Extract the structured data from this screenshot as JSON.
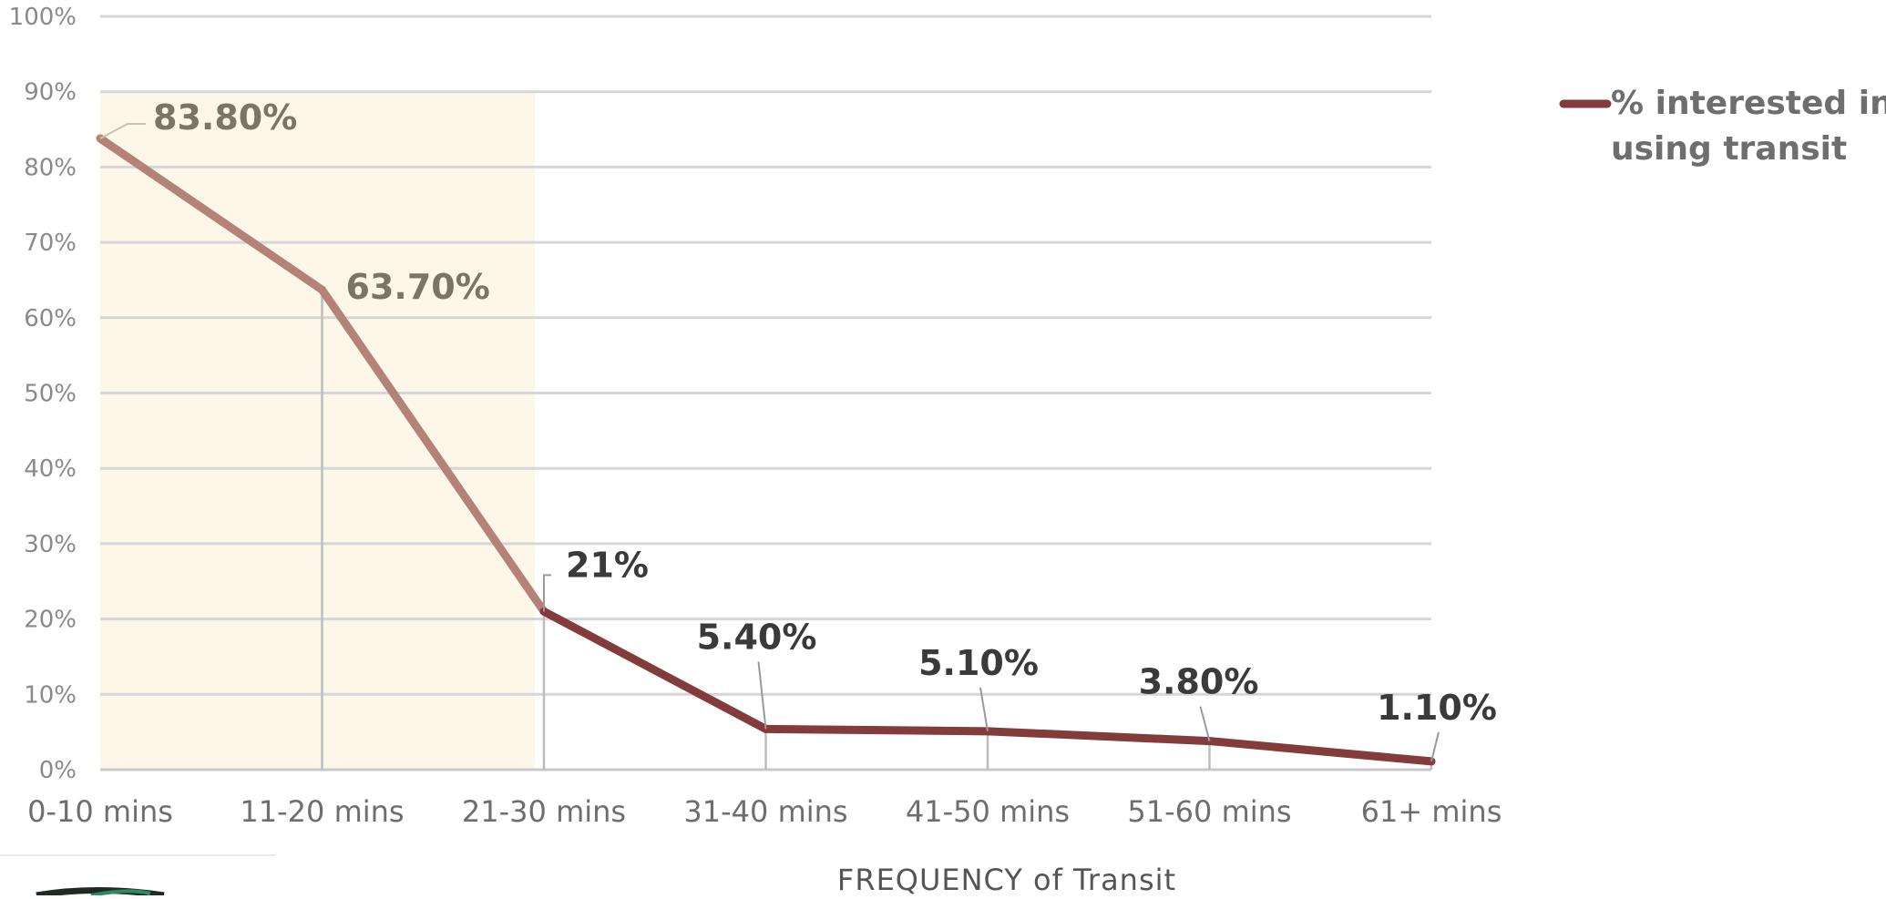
{
  "chart_data": {
    "type": "line",
    "title": "",
    "xlabel": "FREQUENCY of Transit",
    "ylabel": "",
    "categories": [
      "0-10 mins",
      "11-20 mins",
      "21-30 mins",
      "31-40 mins",
      "41-50 mins",
      "51-60 mins",
      "61+ mins"
    ],
    "series": [
      {
        "name": "% interested in using transit",
        "values": [
          83.8,
          63.7,
          21,
          5.4,
          5.1,
          3.8,
          1.1
        ],
        "data_labels": [
          "83.80%",
          "63.70%",
          "21%",
          "5.40%",
          "5.10%",
          "3.80%",
          "1.10%"
        ],
        "color": "#833b3b",
        "highlight_color": "#b5827a"
      }
    ],
    "ylim": [
      0,
      100
    ],
    "yticks": [
      0,
      10,
      20,
      30,
      40,
      50,
      60,
      70,
      80,
      90,
      100
    ],
    "ytick_labels": [
      "0%",
      "10%",
      "20%",
      "30%",
      "40%",
      "50%",
      "60%",
      "70%",
      "80%",
      "90%",
      "100%"
    ],
    "highlight_region": {
      "from_category": "0-10 mins",
      "to_category": "21-30 mins",
      "y_top": 90,
      "color": "#fdf7e9"
    },
    "grid": true,
    "legend": {
      "position": "top-right",
      "lines": [
        "% interested in",
        "using transit"
      ]
    }
  }
}
